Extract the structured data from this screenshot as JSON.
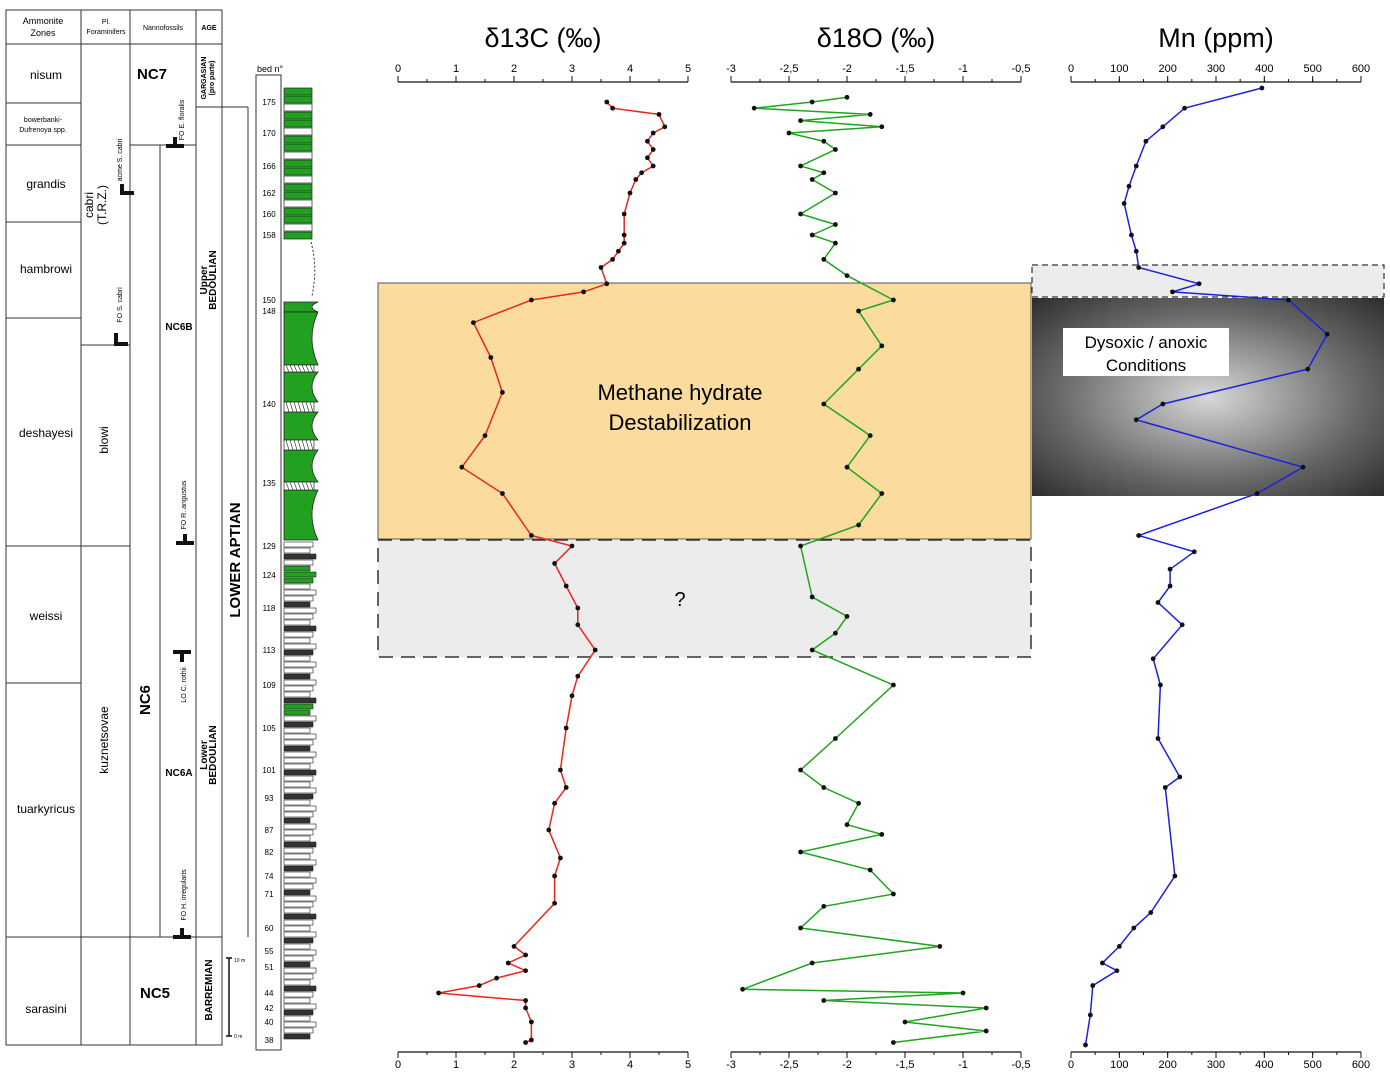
{
  "headers": {
    "ammonite": [
      "Ammonite",
      "Zones"
    ],
    "foram": [
      "Pl.",
      "Foraminifers"
    ],
    "nanno": "Nannofossils",
    "age": "AGE",
    "bed": "bed n°"
  },
  "ammonite_zones": [
    "nisum",
    "bowerbanki-",
    "Dufrenoya spp.",
    "grandis",
    "hambrowi",
    "deshayesi",
    "weissi",
    "tuarkyricus",
    "sarasini"
  ],
  "foram_zones": {
    "cabri": "cabri",
    "trz": "(T.R.Z.)",
    "blowi": "blowi",
    "kuznetsovae": "kuznetsovae",
    "acme_cabri": "acme S. cabri",
    "fo_cabri": "FO S. cabri"
  },
  "nanno_zones": {
    "nc7": "NC7",
    "nc6": "NC6",
    "nc6b": "NC6B",
    "nc6a": "NC6A",
    "nc5": "NC5",
    "fo_floralis": "FO E. floralis",
    "fo_angustus": "FO R. angustus",
    "lo_rothii": "LO C. rothii",
    "fo_irregularis": "FO H. irregularis"
  },
  "age": {
    "gargasian": "GARGASIAN",
    "pro_parte": "(pro parte)",
    "upper": "Upper",
    "bedoulian": "BEDOULIAN",
    "lower_aptian": "LOWER APTIAN",
    "lower": "Lower",
    "barremian": "BARREMIAN",
    "scale_10m": "10 m",
    "scale_0m": "0 m"
  },
  "bed_numbers": [
    "175",
    "170",
    "166",
    "162",
    "160",
    "158",
    "150",
    "148",
    "140",
    "135",
    "129",
    "124",
    "118",
    "113",
    "109",
    "105",
    "101",
    "93",
    "87",
    "82",
    "74",
    "71",
    "60",
    "55",
    "51",
    "44",
    "42",
    "40",
    "38"
  ],
  "annotations": {
    "methane1": "Methane hydrate",
    "methane2": "Destabilization",
    "question": "?",
    "dysoxic1": "Dysoxic / anoxic",
    "dysoxic2": "Conditions"
  },
  "colors": {
    "d13c": "#e8271c",
    "d18o": "#1ea51e",
    "mn": "#1a22e0",
    "methane_box": "#fbdc9e",
    "grey_box": "#ececec",
    "green_bed": "#22a020"
  },
  "chart_data": [
    {
      "type": "line",
      "title": "δ13C (‰)",
      "xlim": [
        0,
        5
      ],
      "x_ticks": [
        "0",
        "1",
        "2",
        "3",
        "4",
        "5"
      ],
      "y_unit": "bed number",
      "x": [
        3.6,
        3.7,
        4.5,
        4.6,
        4.4,
        4.3,
        4.4,
        4.3,
        4.4,
        4.2,
        4.1,
        4.0,
        3.9,
        3.9,
        3.9,
        3.8,
        3.7,
        3.5,
        3.6,
        3.2,
        2.3,
        1.3,
        1.6,
        1.8,
        1.5,
        1.1,
        1.8,
        2.3,
        3.0,
        2.7,
        2.9,
        3.1,
        3.1,
        3.4,
        3.1,
        3.0,
        2.9,
        2.8,
        2.9,
        2.7,
        2.6,
        2.8,
        2.7,
        2.7,
        2.0,
        2.2,
        1.9,
        2.2,
        1.7,
        1.4,
        0.7,
        2.2,
        2.2,
        2.3,
        2.3,
        2.2
      ],
      "y": [
        175,
        174,
        173,
        171,
        170,
        169,
        168,
        167,
        166,
        165,
        164,
        162,
        160,
        158,
        157,
        156,
        155,
        154,
        152,
        151,
        150,
        147,
        144,
        141,
        138,
        136,
        134,
        130,
        129,
        126,
        122,
        118,
        116,
        113,
        110,
        108,
        105,
        101,
        96,
        92,
        87,
        80,
        74,
        68,
        56,
        54,
        52,
        50,
        48,
        46,
        44,
        43,
        42,
        40,
        38,
        37
      ]
    },
    {
      "type": "line",
      "title": "δ18O (‰)",
      "xlim": [
        -3,
        -0.5
      ],
      "x_ticks": [
        "-3",
        "-2,5",
        "-2",
        "-1,5",
        "-1",
        "-0,5"
      ],
      "y_unit": "bed number",
      "x": [
        -2.0,
        -2.3,
        -2.8,
        -1.8,
        -2.4,
        -1.7,
        -2.5,
        -2.2,
        -2.1,
        -2.4,
        -2.2,
        -2.3,
        -2.1,
        -2.4,
        -2.1,
        -2.3,
        -2.1,
        -2.2,
        -2.0,
        -1.6,
        -1.9,
        -1.7,
        -1.9,
        -2.2,
        -1.8,
        -2.0,
        -1.7,
        -1.9,
        -2.4,
        -2.3,
        -2.0,
        -2.1,
        -2.3,
        -1.6,
        -2.1,
        -2.4,
        -2.2,
        -1.9,
        -2.0,
        -1.7,
        -2.4,
        -1.8,
        -1.6,
        -2.2,
        -2.4,
        -1.2,
        -2.3,
        -2.9,
        -1.0,
        -2.2,
        -0.8,
        -1.5,
        -0.8,
        -1.6
      ],
      "y": [
        176,
        175,
        174,
        173,
        172,
        171,
        170,
        169,
        168,
        166,
        165,
        164,
        162,
        160,
        159,
        158,
        157,
        155,
        153,
        150,
        148,
        145,
        143,
        140,
        138,
        136,
        134,
        131,
        129,
        120,
        117,
        115,
        113,
        109,
        104,
        101,
        96,
        92,
        88,
        86,
        82,
        76,
        71,
        67,
        60,
        56,
        52,
        45,
        44,
        43,
        42,
        40,
        39,
        37
      ]
    },
    {
      "type": "line",
      "title": "Mn (ppm)",
      "xlim": [
        0,
        600
      ],
      "x_ticks": [
        "0",
        "100",
        "200",
        "300",
        "400",
        "500",
        "600"
      ],
      "y_unit": "bed number",
      "x": [
        395,
        235,
        190,
        155,
        135,
        120,
        110,
        125,
        135,
        140,
        265,
        210,
        450,
        530,
        490,
        190,
        135,
        480,
        385,
        140,
        255,
        205,
        205,
        180,
        230,
        170,
        185,
        180,
        225,
        195,
        215,
        165,
        130,
        100,
        65,
        95,
        45,
        40,
        30
      ],
      "y": [
        178,
        174,
        171,
        169,
        166,
        163,
        161,
        158,
        156,
        154,
        152,
        151,
        150,
        146,
        143,
        140,
        139,
        136,
        134,
        130,
        128,
        125,
        122,
        119,
        116,
        112,
        109,
        104,
        99,
        96,
        74,
        65,
        60,
        56,
        52,
        50,
        46,
        41,
        36
      ]
    }
  ]
}
